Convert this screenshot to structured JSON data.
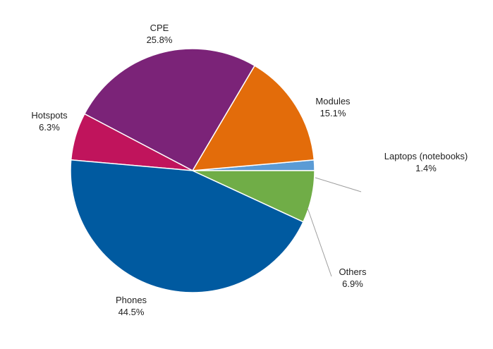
{
  "chart_data": {
    "type": "pie",
    "title": "",
    "start_angle_deg": 0,
    "direction": "counterclockwise",
    "slices": [
      {
        "label": "Laptops (notebooks)",
        "value": 1.4,
        "value_label": "1.4%",
        "color": "#5b9bd5",
        "leader": true
      },
      {
        "label": "Modules",
        "value": 15.1,
        "value_label": "15.1%",
        "color": "#e36c0a",
        "leader": false
      },
      {
        "label": "CPE",
        "value": 25.8,
        "value_label": "25.8%",
        "color": "#7b2378",
        "leader": false
      },
      {
        "label": "Hotspots",
        "value": 6.3,
        "value_label": "6.3%",
        "color": "#c0145c",
        "leader": false
      },
      {
        "label": "Phones",
        "value": 44.5,
        "value_label": "44.5%",
        "color": "#005aa0",
        "leader": false
      },
      {
        "label": "Others",
        "value": 6.9,
        "value_label": "6.9%",
        "color": "#70ad47",
        "leader": true
      }
    ]
  }
}
